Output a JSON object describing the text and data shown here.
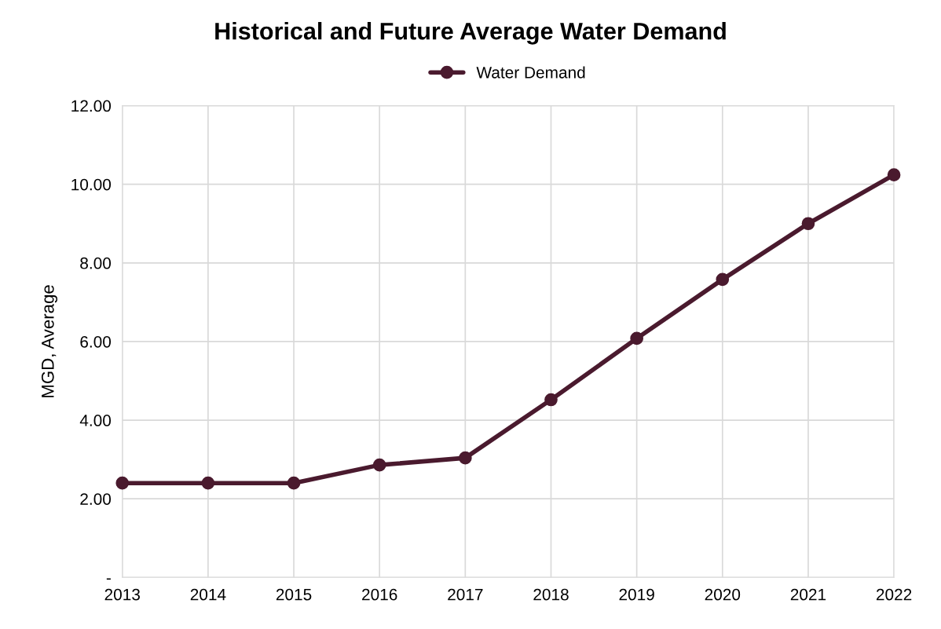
{
  "chart_data": {
    "type": "line",
    "title": "Historical and Future Average Water Demand",
    "ylabel": "MGD, Average",
    "categories": [
      "2013",
      "2014",
      "2015",
      "2016",
      "2017",
      "2018",
      "2019",
      "2020",
      "2021",
      "2022"
    ],
    "series": [
      {
        "name": "Water Demand",
        "color": "#4a1a2e",
        "values": [
          2.4,
          2.4,
          2.4,
          2.86,
          3.04,
          4.52,
          6.08,
          7.58,
          9.0,
          10.24
        ]
      }
    ],
    "ylim": [
      0,
      12
    ],
    "yticks": [
      {
        "value": 0,
        "label": "-"
      },
      {
        "value": 2,
        "label": "2.00"
      },
      {
        "value": 4,
        "label": "4.00"
      },
      {
        "value": 6,
        "label": "6.00"
      },
      {
        "value": 8,
        "label": "8.00"
      },
      {
        "value": 10,
        "label": "10.00"
      },
      {
        "value": 12,
        "label": "12.00"
      }
    ],
    "grid": true,
    "legend": "top",
    "marker": "circle",
    "line_style": "solid"
  }
}
